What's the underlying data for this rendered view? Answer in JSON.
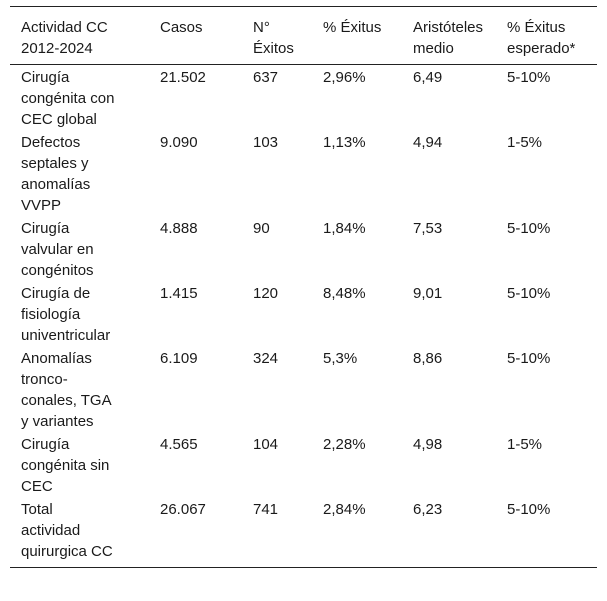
{
  "table": {
    "header": [
      "Actividad CC 2012-2024",
      "Casos",
      "N° Éxitos",
      "% Éxitus",
      "Aristóteles medio",
      "% Éxitus esperado*"
    ],
    "rows": [
      [
        "Cirugía congénita con CEC global",
        "21.502",
        "637",
        "2,96%",
        "6,49",
        "5-10%"
      ],
      [
        "Defectos septales y anomalías VVPP",
        "9.090",
        "103",
        "1,13%",
        "4,94",
        "1-5%"
      ],
      [
        "Cirugía valvular en congénitos",
        "4.888",
        "90",
        "1,84%",
        "7,53",
        "5-10%"
      ],
      [
        "Cirugía de fisiología univentricular",
        "1.415",
        "120",
        "8,48%",
        "9,01",
        "5-10%"
      ],
      [
        "Anomalías tronco-conales, TGA y variantes",
        "6.109",
        "324",
        "5,3%",
        "8,86",
        "5-10%"
      ],
      [
        "Cirugía congénita sin CEC",
        "4.565",
        "104",
        "2,28%",
        "4,98",
        "1-5%"
      ],
      [
        "Total actividad quirurgica CC",
        "26.067",
        "741",
        "2,84%",
        "6,23",
        "5-10%"
      ]
    ]
  }
}
